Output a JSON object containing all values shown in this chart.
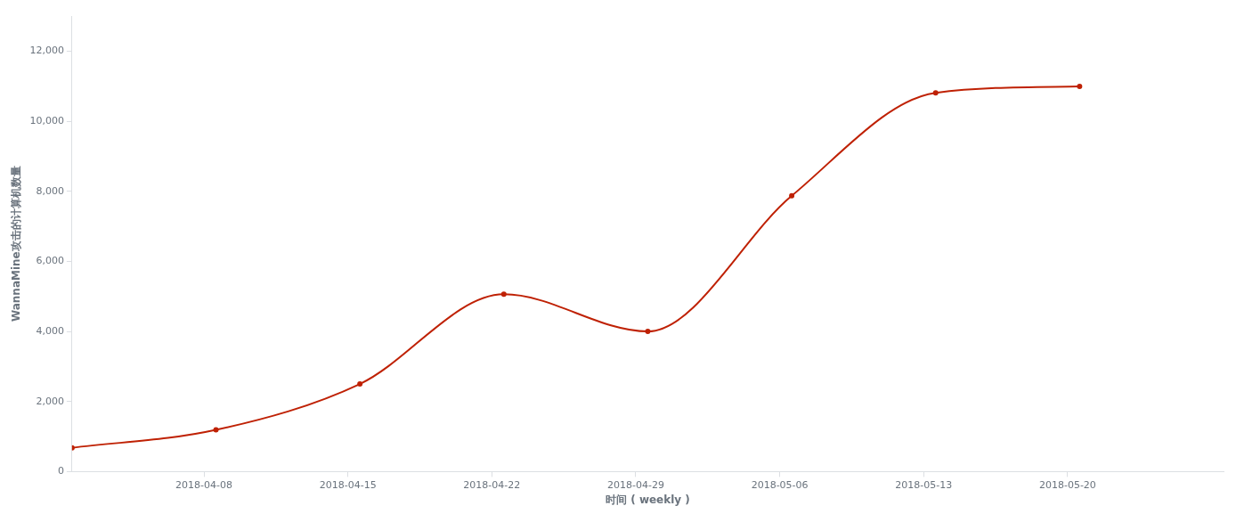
{
  "chart_data": {
    "type": "line",
    "xlabel": "时间 ( weekly )",
    "ylabel": "WannaMine攻击的计算机数量",
    "x": [
      "2018-04-01T14:00",
      "2018-04-08T14:00",
      "2018-04-15T14:00",
      "2018-04-22T14:00",
      "2018-04-29T14:00",
      "2018-05-06T14:00",
      "2018-05-13T14:00",
      "2018-05-20T14:00"
    ],
    "series": [
      {
        "color": "#bf2104",
        "values": [
          680,
          1190,
          2500,
          5060,
          4000,
          7870,
          10810,
          10990
        ]
      }
    ],
    "xlim": [
      "2018-04-01T14:00",
      "2018-05-27T14:00"
    ],
    "xticks": [
      "2018-04-08",
      "2018-04-15",
      "2018-04-22",
      "2018-04-29",
      "2018-05-06",
      "2018-05-13",
      "2018-05-20"
    ],
    "ylim": [
      0,
      13000
    ],
    "yticks": [
      {
        "value": 0,
        "label": "0"
      },
      {
        "value": 2000,
        "label": "2,000"
      },
      {
        "value": 4000,
        "label": "4,000"
      },
      {
        "value": 6000,
        "label": "6,000"
      },
      {
        "value": 8000,
        "label": "8,000"
      },
      {
        "value": 10000,
        "label": "10,000"
      },
      {
        "value": 12000,
        "label": "12,000"
      }
    ],
    "grid": false,
    "legend": false,
    "marker": "circle",
    "line_style": "solid"
  }
}
